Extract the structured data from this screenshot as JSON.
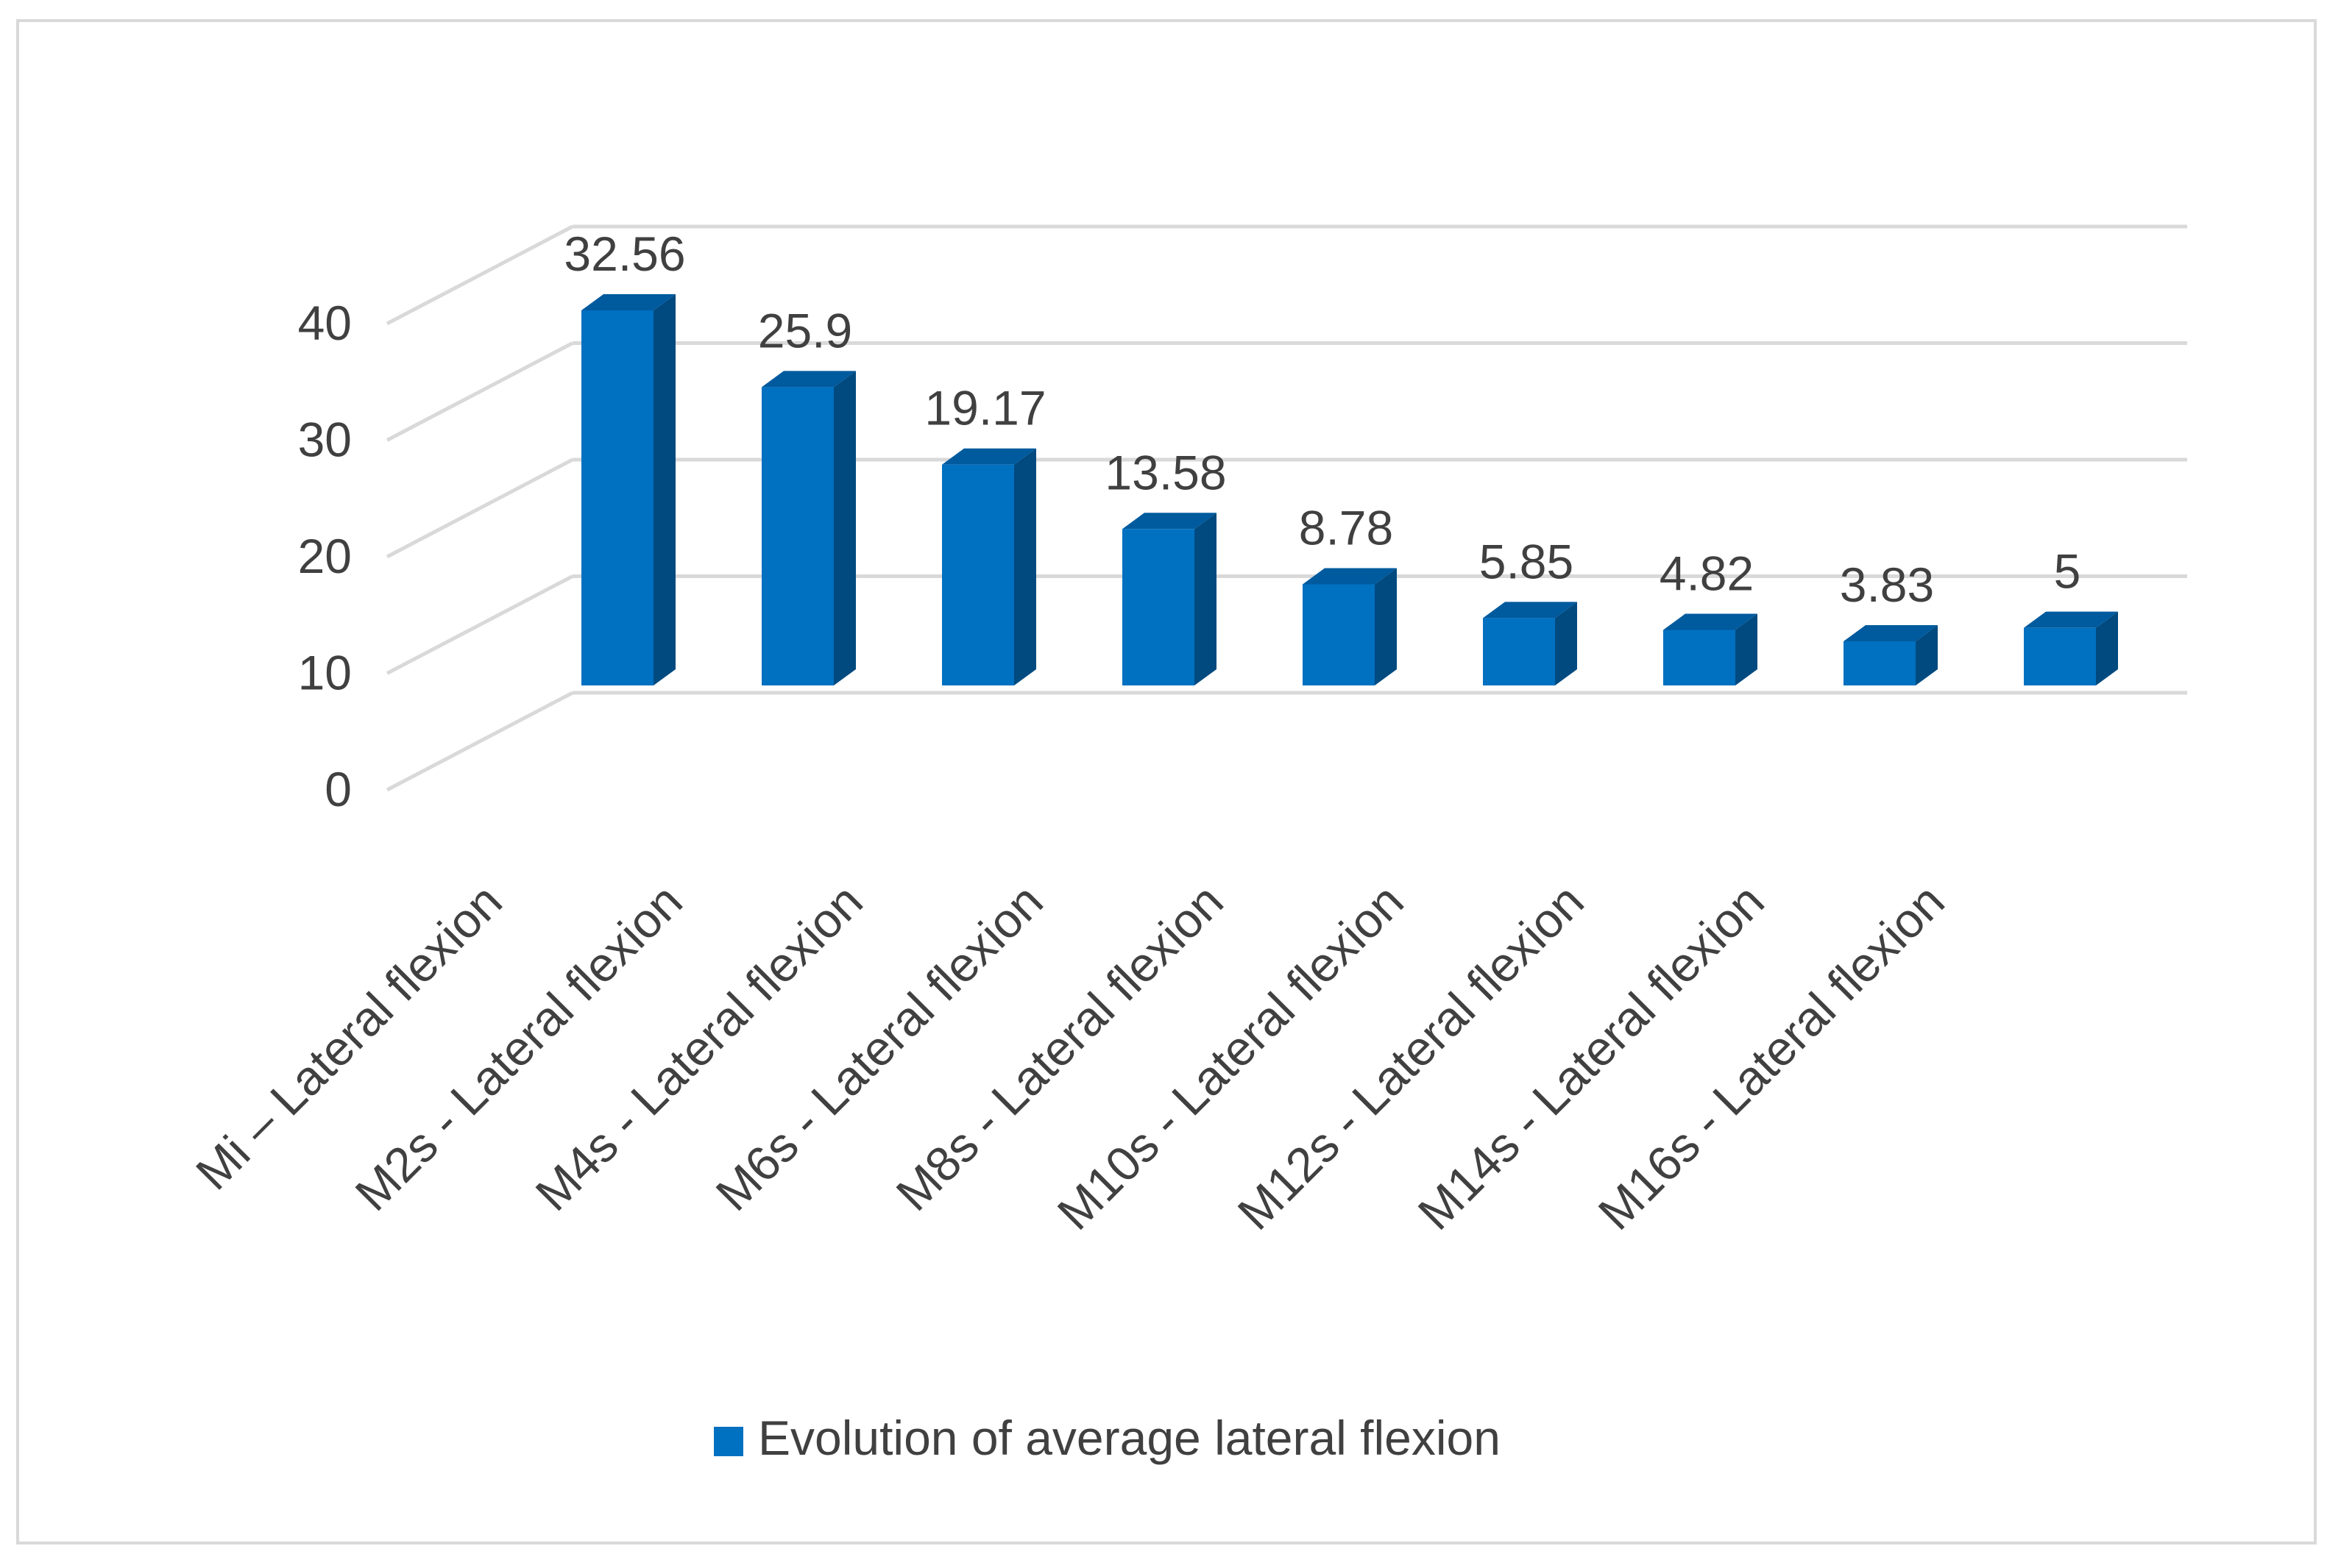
{
  "chart_data": {
    "type": "bar",
    "style": "3d-column",
    "categories": [
      "Mi – Lateral  flexion",
      "M2s - Lateral  flexion",
      "M4s - Lateral  flexion",
      "M6s - Lateral  flexion",
      "M8s - Lateral  flexion",
      "M10s - Lateral  flexion",
      "M12s - Lateral  flexion",
      "M14s - Lateral  flexion",
      "M16s - Lateral  flexion"
    ],
    "series": [
      {
        "name": "Evolution of average lateral flexion",
        "values": [
          32.56,
          25.9,
          19.17,
          13.58,
          8.78,
          5.85,
          4.82,
          3.83,
          5
        ],
        "data_labels": [
          "32.56",
          "25.9",
          "19.17",
          "13.58",
          "8.78",
          "5.85",
          "4.82",
          "3.83",
          "5"
        ],
        "color": "#0070c0",
        "side_color": "#004a80",
        "top_color": "#005a9e"
      }
    ],
    "y_ticks": [
      "0",
      "10",
      "20",
      "30",
      "40"
    ],
    "ylim": [
      0,
      40
    ],
    "grid": true,
    "grid_color": "#d9d9d9",
    "legend_position": "bottom",
    "title": "",
    "xlabel": "",
    "ylabel": ""
  }
}
